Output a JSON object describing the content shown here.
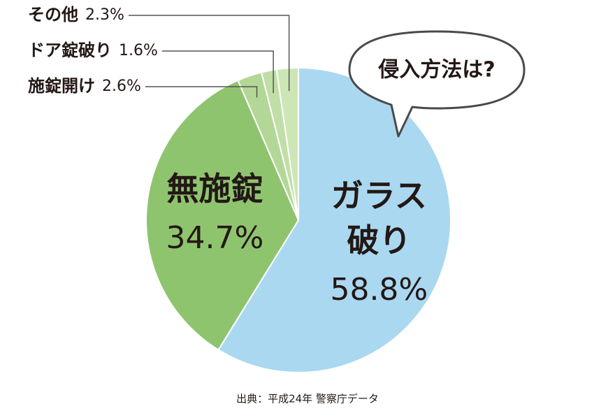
{
  "chart_data": {
    "type": "pie",
    "annotation": "侵入方法は?",
    "source": "出典：平成24年 警察庁データ",
    "categories": [
      "ガラス破り",
      "無施錠",
      "施錠開け",
      "ドア錠破り",
      "その他"
    ],
    "values": [
      58.8,
      34.7,
      2.6,
      1.6,
      2.3
    ],
    "value_labels": [
      "58.8%",
      "34.7%",
      "2.6%",
      "1.6%",
      "2.3%"
    ],
    "colors": [
      "#aad8f1",
      "#8fc46f",
      "#b3d796",
      "#c0dea6",
      "#cde6b5"
    ]
  }
}
